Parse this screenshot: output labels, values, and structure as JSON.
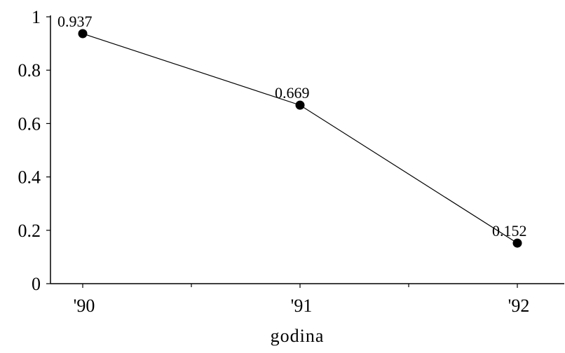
{
  "chart_data": {
    "type": "line",
    "categories": [
      "'90",
      "'91",
      "'92"
    ],
    "series": [
      {
        "values": [
          0.937,
          0.669,
          0.152
        ],
        "data_labels": [
          "0.937",
          "0.669",
          "0.152"
        ]
      }
    ],
    "y_ticks": [
      "0",
      "0.2",
      "0.4",
      "0.6",
      "0.8",
      "1"
    ],
    "y_tick_values": [
      0,
      0.2,
      0.4,
      0.6,
      0.8,
      1
    ],
    "ylim": [
      0,
      1
    ],
    "xlabel": "godina",
    "ylabel": "",
    "title": "",
    "grid": false,
    "legend": "none",
    "colors": {
      "line": "#000000",
      "marker": "#000000",
      "background": "#ffffff"
    }
  }
}
